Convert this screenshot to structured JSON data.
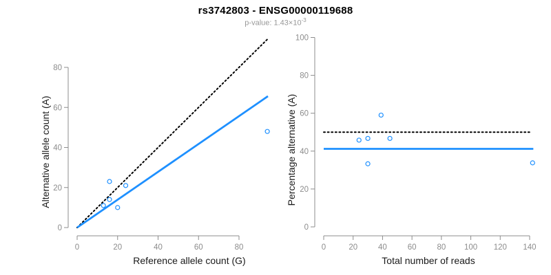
{
  "header": {
    "title": "rs3742803 - ENSG00000119688",
    "subtitle_base": "p-value: 1.43×10",
    "subtitle_exponent": "-3"
  },
  "colors": {
    "accent_blue": "#1E90FF",
    "line_black": "#000000",
    "axis_gray": "#8c8c8c",
    "tick_label_gray": "#8c8c8c",
    "axis_title_color": "#1a1a1a",
    "subtitle_gray": "#989898"
  },
  "chart_data": [
    {
      "type": "scatter",
      "title": "",
      "xlabel": "Reference allele count (G)",
      "ylabel": "Alternative allele count (A)",
      "xticks": [
        0,
        20,
        40,
        60,
        80
      ],
      "yticks": [
        0,
        20,
        40,
        60,
        80
      ],
      "xlim": [
        0,
        94.3
      ],
      "ylim": [
        0,
        94.3
      ],
      "grid": false,
      "legend": null,
      "points": [
        [
          16,
          23
        ],
        [
          24,
          21
        ],
        [
          16,
          14
        ],
        [
          13,
          11
        ],
        [
          20,
          10
        ],
        [
          94,
          48
        ]
      ],
      "lines": [
        {
          "name": "identity-line",
          "style": "dotted",
          "color": "#000000",
          "from": [
            0,
            0
          ],
          "to": [
            94.3,
            94.3
          ]
        },
        {
          "name": "regression-line",
          "style": "solid",
          "color": "#1E90FF",
          "from": [
            0,
            0
          ],
          "to": [
            94.3,
            65.6
          ]
        }
      ]
    },
    {
      "type": "scatter",
      "title": "",
      "xlabel": "Total number of reads",
      "ylabel": "Percentage alternative (A)",
      "xticks": [
        0,
        20,
        40,
        60,
        80,
        100,
        120,
        140
      ],
      "yticks": [
        0,
        20,
        40,
        60,
        80,
        100
      ],
      "xlim": [
        0,
        142.5
      ],
      "ylim": [
        0,
        100
      ],
      "grid": false,
      "legend": null,
      "points": [
        [
          24,
          45.8
        ],
        [
          30,
          46.7
        ],
        [
          39,
          59
        ],
        [
          45,
          46.7
        ],
        [
          30,
          33.3
        ],
        [
          142,
          33.8
        ]
      ],
      "lines": [
        {
          "name": "expected-50pct-line",
          "style": "dotted",
          "color": "#000000",
          "from": [
            0,
            50
          ],
          "to": [
            140,
            50
          ]
        },
        {
          "name": "mean-percentage-line",
          "style": "solid",
          "color": "#1E90FF",
          "from": [
            0,
            41.2
          ],
          "to": [
            142.5,
            41.2
          ]
        }
      ]
    }
  ]
}
